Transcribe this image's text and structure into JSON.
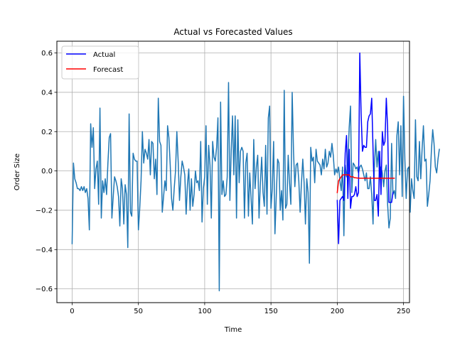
{
  "chart_data": {
    "type": "line",
    "title": "Actual vs Forecasted Values",
    "xlabel": "Time",
    "ylabel": "Order Size",
    "xlim": [
      -11.5,
      254.5
    ],
    "ylim": [
      -0.67,
      0.66
    ],
    "xticks": [
      0,
      50,
      100,
      150,
      200,
      250
    ],
    "yticks": [
      -0.6,
      -0.4,
      -0.2,
      0.0,
      0.2,
      0.4,
      0.6
    ],
    "xtick_labels": [
      "0",
      "50",
      "100",
      "150",
      "200",
      "250"
    ],
    "ytick_labels": [
      "−0.6",
      "−0.4",
      "−0.2",
      "0.0",
      "0.2",
      "0.4",
      "0.6"
    ],
    "grid": true,
    "legend_position": "top-left",
    "series": [
      {
        "name": "",
        "color": "#1f77b4",
        "x_start": 0,
        "values": [
          -0.37,
          0.04,
          -0.04,
          -0.06,
          -0.09,
          -0.09,
          -0.1,
          -0.08,
          -0.1,
          -0.08,
          -0.11,
          -0.09,
          -0.14,
          -0.3,
          0.24,
          0.12,
          0.22,
          -0.09,
          0.01,
          0.05,
          -0.17,
          0.32,
          -0.24,
          -0.05,
          -0.11,
          -0.04,
          -0.12,
          0.04,
          0.17,
          0.19,
          -0.24,
          -0.13,
          -0.03,
          -0.05,
          -0.08,
          -0.13,
          -0.28,
          -0.04,
          -0.09,
          -0.27,
          -0.07,
          -0.12,
          -0.39,
          0.29,
          -0.21,
          -0.23,
          0.09,
          0.06,
          0.05,
          0.05,
          -0.3,
          -0.19,
          -0.05,
          0.2,
          0.04,
          0.11,
          0.09,
          0.06,
          0.16,
          -0.02,
          0.15,
          0.14,
          -0.04,
          0.06,
          -0.12,
          0.37,
          0.15,
          0.13,
          -0.21,
          -0.13,
          -0.05,
          -0.1,
          0.23,
          0.17,
          0.03,
          -0.14,
          -0.2,
          -0.09,
          0.0,
          0.2,
          0.05,
          -0.15,
          -0.03,
          0.05,
          0.02,
          -0.02,
          -0.22,
          -0.07,
          0.01,
          -0.2,
          -0.04,
          -0.18,
          -0.12,
          0.0,
          -0.06,
          -0.05,
          -0.1,
          0.15,
          -0.26,
          -0.09,
          -0.03,
          0.23,
          -0.17,
          0.13,
          0.03,
          -0.24,
          0.15,
          0.07,
          0.05,
          0.12,
          0.27,
          -0.61,
          0.35,
          -0.12,
          -0.05,
          -0.13,
          -0.12,
          -0.03,
          0.45,
          -0.15,
          0.1,
          0.28,
          -0.02,
          0.28,
          -0.24,
          0.26,
          -0.06,
          0.1,
          0.12,
          0.1,
          -0.24,
          0.04,
          0.09,
          -0.23,
          -0.01,
          -0.14,
          -0.27,
          0.16,
          -0.09,
          0.02,
          0.08,
          -0.24,
          -0.06,
          0.07,
          -0.11,
          -0.18,
          0.13,
          -0.22,
          0.27,
          0.33,
          -0.19,
          -0.09,
          0.15,
          -0.32,
          -0.13,
          0.06,
          0.04,
          -0.2,
          -0.1,
          -0.25,
          0.41,
          -0.19,
          -0.17,
          0.08,
          -0.06,
          -0.17,
          0.4,
          0.1,
          -0.08,
          0.03,
          0.04,
          -0.05,
          -0.21,
          -0.06,
          0.06,
          -0.06,
          -0.27,
          -0.04,
          -0.11,
          -0.47,
          0.12,
          0.05,
          0.07,
          -0.06,
          0.11,
          0.05,
          0.04,
          0.03,
          -0.02,
          0.06,
          0.01,
          0.11,
          0.02,
          0.04,
          0.1,
          0.07,
          0.14,
          0.08,
          -0.02,
          0.01,
          -0.01,
          0.02,
          -0.05,
          -0.1,
          0.02,
          -0.33,
          0.03,
          -0.03,
          0.03,
          0.22,
          0.33,
          -0.11,
          0.04,
          0.03,
          0.01,
          0.02,
          -0.01,
          0.02,
          0.03,
          0.01,
          -0.02,
          -0.05,
          -0.01,
          -0.09,
          -0.09,
          -0.03,
          -0.12,
          -0.27,
          0.02,
          0.16,
          0.02,
          0.1,
          -0.04,
          0.02,
          -0.01,
          -0.08,
          0.0,
          0.03,
          -0.17,
          -0.29,
          -0.24,
          0.14,
          -0.12,
          -0.1,
          -0.14,
          0.18,
          0.25,
          -0.02,
          0.23,
          -0.13,
          0.38,
          0.06,
          -0.14,
          0.01,
          0.02,
          -0.21,
          -0.04,
          -0.1,
          -0.14,
          0.26,
          -0.03,
          -0.05,
          0.15,
          -0.04,
          0.11,
          0.23,
          0.05,
          0.06,
          -0.18,
          -0.12,
          -0.05,
          0.1,
          0.21,
          0.14,
          0.02,
          -0.01,
          0.06,
          0.11
        ]
      },
      {
        "name": "Actual",
        "color": "#0000ff",
        "x_start": 200,
        "values": [
          -0.15,
          -0.37,
          -0.15,
          -0.14,
          -0.13,
          -0.15,
          0.09,
          0.18,
          -0.14,
          0.11,
          -0.19,
          -0.13,
          -0.13,
          -0.12,
          -0.08,
          -0.13,
          -0.11,
          0.6,
          0.29,
          0.1,
          0.13,
          0.12,
          0.12,
          0.25,
          0.28,
          0.29,
          0.37,
          0.11,
          -0.15,
          -0.15,
          -0.12,
          -0.23,
          0.1,
          -0.12,
          0.2,
          0.13,
          0.15,
          0.37,
          0.22,
          -0.16,
          -0.16,
          -0.16,
          -0.11
        ]
      },
      {
        "name": "Forecast",
        "color": "#ff0000",
        "x_start": 200,
        "values": [
          -0.11,
          -0.05,
          -0.04,
          -0.03,
          -0.02,
          -0.02,
          -0.02,
          -0.02,
          -0.02,
          -0.02,
          -0.03,
          -0.03,
          -0.03,
          -0.035,
          -0.035,
          -0.036,
          -0.036,
          -0.037,
          -0.037,
          -0.037,
          -0.037,
          -0.037,
          -0.037,
          -0.037,
          -0.037,
          -0.037,
          -0.037,
          -0.037,
          -0.037,
          -0.037,
          -0.037,
          -0.037,
          -0.037,
          -0.037,
          -0.037,
          -0.037,
          -0.037,
          -0.037,
          -0.037,
          -0.037,
          -0.037,
          -0.037,
          -0.037,
          -0.037
        ]
      }
    ]
  }
}
